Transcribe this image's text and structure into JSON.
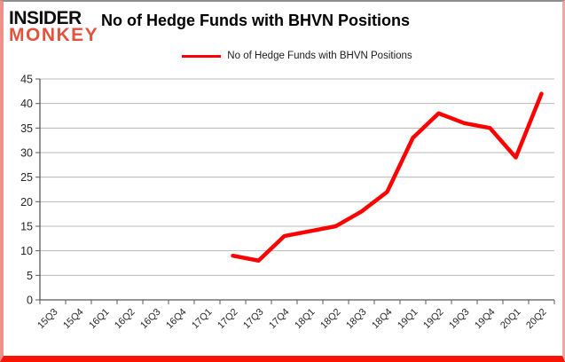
{
  "brand": {
    "line1": "INSIDER",
    "line2": "MONKEY",
    "accent_color": "#e2523c"
  },
  "header": {
    "title": "No of Hedge Funds with BHVN Positions"
  },
  "legend": {
    "label": "No of Hedge Funds with BHVN Positions",
    "line_color": "#ff0000"
  },
  "chart_data": {
    "type": "line",
    "title": "No of Hedge Funds with BHVN Positions",
    "xlabel": "",
    "ylabel": "",
    "categories": [
      "15Q3",
      "15Q4",
      "16Q1",
      "16Q2",
      "16Q3",
      "16Q4",
      "17Q1",
      "17Q2",
      "17Q3",
      "17Q4",
      "18Q1",
      "18Q2",
      "18Q3",
      "18Q4",
      "19Q1",
      "19Q2",
      "19Q3",
      "19Q4",
      "20Q1",
      "20Q2"
    ],
    "series": [
      {
        "name": "No of Hedge Funds with BHVN Positions",
        "color": "#ff0000",
        "values": [
          null,
          null,
          null,
          null,
          null,
          null,
          null,
          9,
          8,
          13,
          14,
          15,
          18,
          22,
          33,
          38,
          36,
          35,
          29,
          42
        ]
      }
    ],
    "ylim": [
      0,
      45
    ],
    "ytick_step": 5,
    "yticks": [
      0,
      5,
      10,
      15,
      20,
      25,
      30,
      35,
      40,
      45
    ],
    "grid": true,
    "legend_position": "top"
  }
}
